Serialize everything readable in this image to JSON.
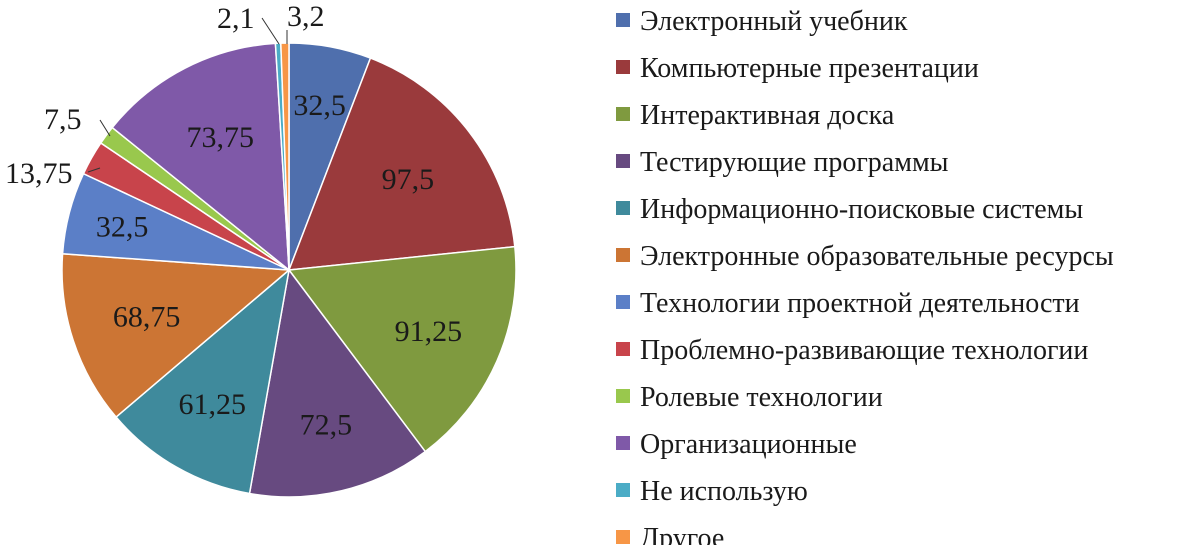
{
  "chart_data": {
    "type": "pie",
    "title": "",
    "categories": [
      "Электронный учебник",
      "Компьютерные презентации",
      "Интерактивная доска",
      "Тестирующие программы",
      "Информационно-поисковые системы",
      "Электронные образовательные ресурсы",
      "Технологии проектной деятельности",
      "Проблемно-развивающие технологии",
      "Ролевые технологии",
      "Организационные",
      "Не использую",
      "Другое"
    ],
    "values": [
      32.5,
      97.5,
      91.25,
      72.5,
      61.25,
      68.75,
      32.5,
      13.75,
      7.5,
      73.75,
      2.1,
      3.2
    ],
    "data_labels": [
      "32,5",
      "97,5",
      "91,25",
      "72,5",
      "61,25",
      "68,75",
      "32,5",
      "13,75",
      "7,5",
      "73,75",
      "2,1",
      "3,2"
    ],
    "colors": [
      "#4F6FAD",
      "#9A3A3C",
      "#7F9A3F",
      "#674A80",
      "#3F8A9C",
      "#CC7534",
      "#5B7FC7",
      "#C8444B",
      "#99C84D",
      "#7F59A8",
      "#4BACC6",
      "#F79646"
    ],
    "start_angle_deg": 0,
    "direction": "clockwise",
    "legend_position": "right"
  }
}
